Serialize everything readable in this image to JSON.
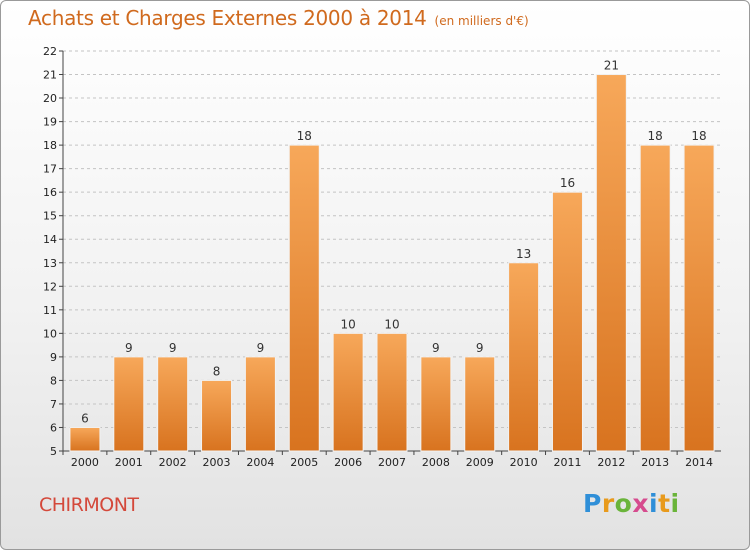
{
  "header": {
    "title": "Achats et Charges Externes 2000 à 2014",
    "unit": "(en milliers d'€)"
  },
  "footer": {
    "commune": "CHIRMONT",
    "brand": "Proxiti"
  },
  "colors": {
    "bar_light": "#f7a85a",
    "bar_dark": "#d8731f",
    "title": "#d06a1e",
    "commune": "#d4483a"
  },
  "chart_data": {
    "type": "bar",
    "title": "Achats et Charges Externes 2000 à 2014",
    "subtitle": "(en milliers d'€)",
    "xlabel": "",
    "ylabel": "",
    "categories": [
      "2000",
      "2001",
      "2002",
      "2003",
      "2004",
      "2005",
      "2006",
      "2007",
      "2008",
      "2009",
      "2010",
      "2011",
      "2012",
      "2013",
      "2014"
    ],
    "values": [
      6,
      9,
      9,
      8,
      9,
      18,
      10,
      10,
      9,
      9,
      13,
      16,
      21,
      18,
      18
    ],
    "ylim": [
      5,
      22
    ],
    "yticks": [
      5,
      6,
      7,
      8,
      9,
      10,
      11,
      12,
      13,
      14,
      15,
      16,
      17,
      18,
      19,
      20,
      21,
      22
    ],
    "grid": true,
    "legend": "none"
  }
}
